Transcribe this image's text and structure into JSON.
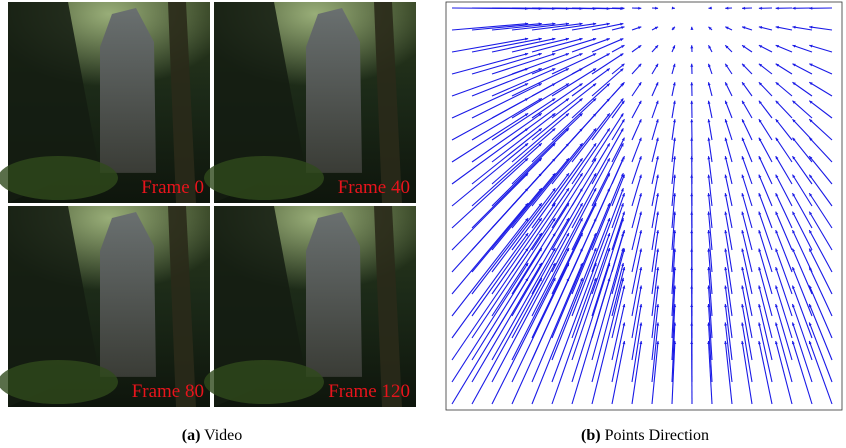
{
  "panels": [
    {
      "label": "(a)",
      "caption": "Video",
      "frames": [
        "Frame 0",
        "Frame 40",
        "Frame 80",
        "Frame 120"
      ]
    },
    {
      "label": "(b)",
      "caption": "Points Direction"
    }
  ]
}
